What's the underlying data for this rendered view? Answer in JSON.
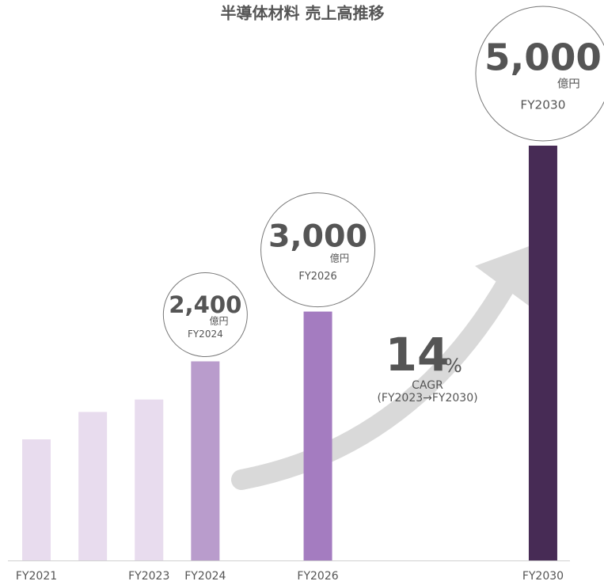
{
  "chart_data": {
    "type": "bar",
    "title": "半導体材料 売上高推移",
    "categories": [
      "FY2021",
      null,
      "FY2023",
      "FY2024",
      null,
      "FY2026",
      null,
      null,
      null,
      "FY2030"
    ],
    "values": [
      1460,
      1790,
      1940,
      2400,
      null,
      3000,
      null,
      null,
      null,
      5000
    ],
    "value_labels": [
      null,
      null,
      null,
      "2,400",
      null,
      "3,000",
      null,
      null,
      null,
      "5,000"
    ],
    "colors": [
      "#e8dcee",
      "#e8dcee",
      "#e8dcee",
      "#b99ccc",
      null,
      "#a47cc0",
      null,
      null,
      null,
      "#472b55"
    ],
    "unit": "億円",
    "ylim": [
      0,
      5000
    ],
    "cagr": {
      "value": 14,
      "unit": "%",
      "label": "CAGR",
      "period": "(FY2023→FY2030)"
    }
  }
}
